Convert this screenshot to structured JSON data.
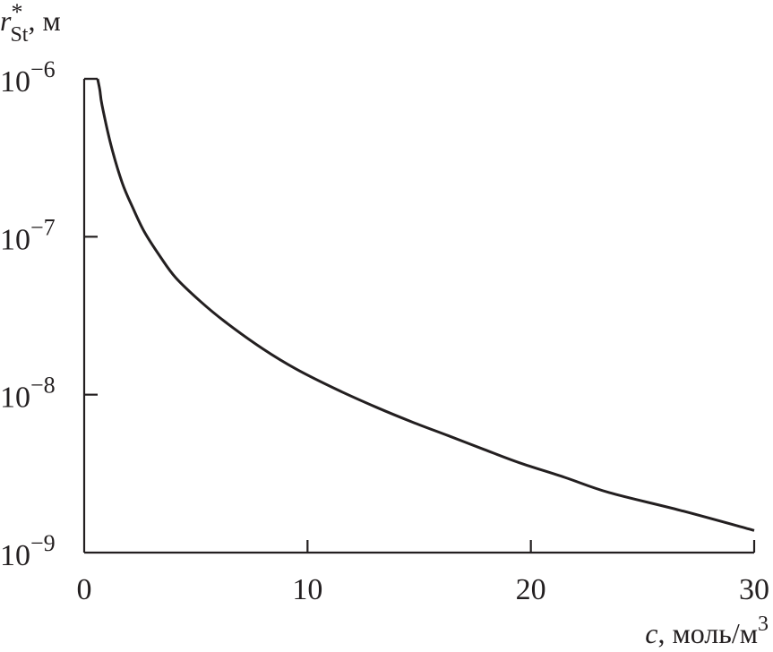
{
  "chart_data": {
    "type": "line",
    "title": "",
    "xlabel": {
      "var": "c",
      "unit": ", моль/м",
      "sup": "3"
    },
    "ylabel": {
      "var": "r",
      "sup": "*",
      "sub": "St",
      "unit": ", м"
    },
    "xlim": [
      0,
      30
    ],
    "ylim": [
      1e-09,
      1e-06
    ],
    "yscale": "log",
    "grid": false,
    "x_ticks": [
      {
        "value": 0,
        "label": "0"
      },
      {
        "value": 10,
        "label": "10"
      },
      {
        "value": 20,
        "label": "20"
      },
      {
        "value": 30,
        "label": "30"
      }
    ],
    "y_ticks": [
      {
        "exp": -6,
        "base": "10",
        "power": "−6"
      },
      {
        "exp": -7,
        "base": "10",
        "power": "−7"
      },
      {
        "exp": -8,
        "base": "10",
        "power": "−8"
      },
      {
        "exp": -9,
        "base": "10",
        "power": "−9"
      }
    ],
    "series": [
      {
        "name": "r*St(c)",
        "color": "#231f20",
        "x": [
          0.6,
          0.7,
          0.8,
          1.2,
          1.7,
          2.2,
          2.7,
          3.4,
          4.1,
          5.2,
          6.3,
          8.0,
          9.5,
          11.3,
          13.1,
          14.7,
          16.3,
          17.9,
          19.5,
          21.5,
          23.5,
          26.7,
          30.0
        ],
        "y": [
          1e-06,
          8.5e-07,
          6.8e-07,
          3.8e-07,
          2.2e-07,
          1.5e-07,
          1.07e-07,
          7.5e-08,
          5.5e-08,
          3.9e-08,
          2.9e-08,
          1.95e-08,
          1.45e-08,
          1.08e-08,
          8.3e-09,
          6.7e-09,
          5.5e-09,
          4.5e-09,
          3.7e-09,
          3e-09,
          2.4e-09,
          1.85e-09,
          1.38e-09
        ]
      }
    ]
  }
}
